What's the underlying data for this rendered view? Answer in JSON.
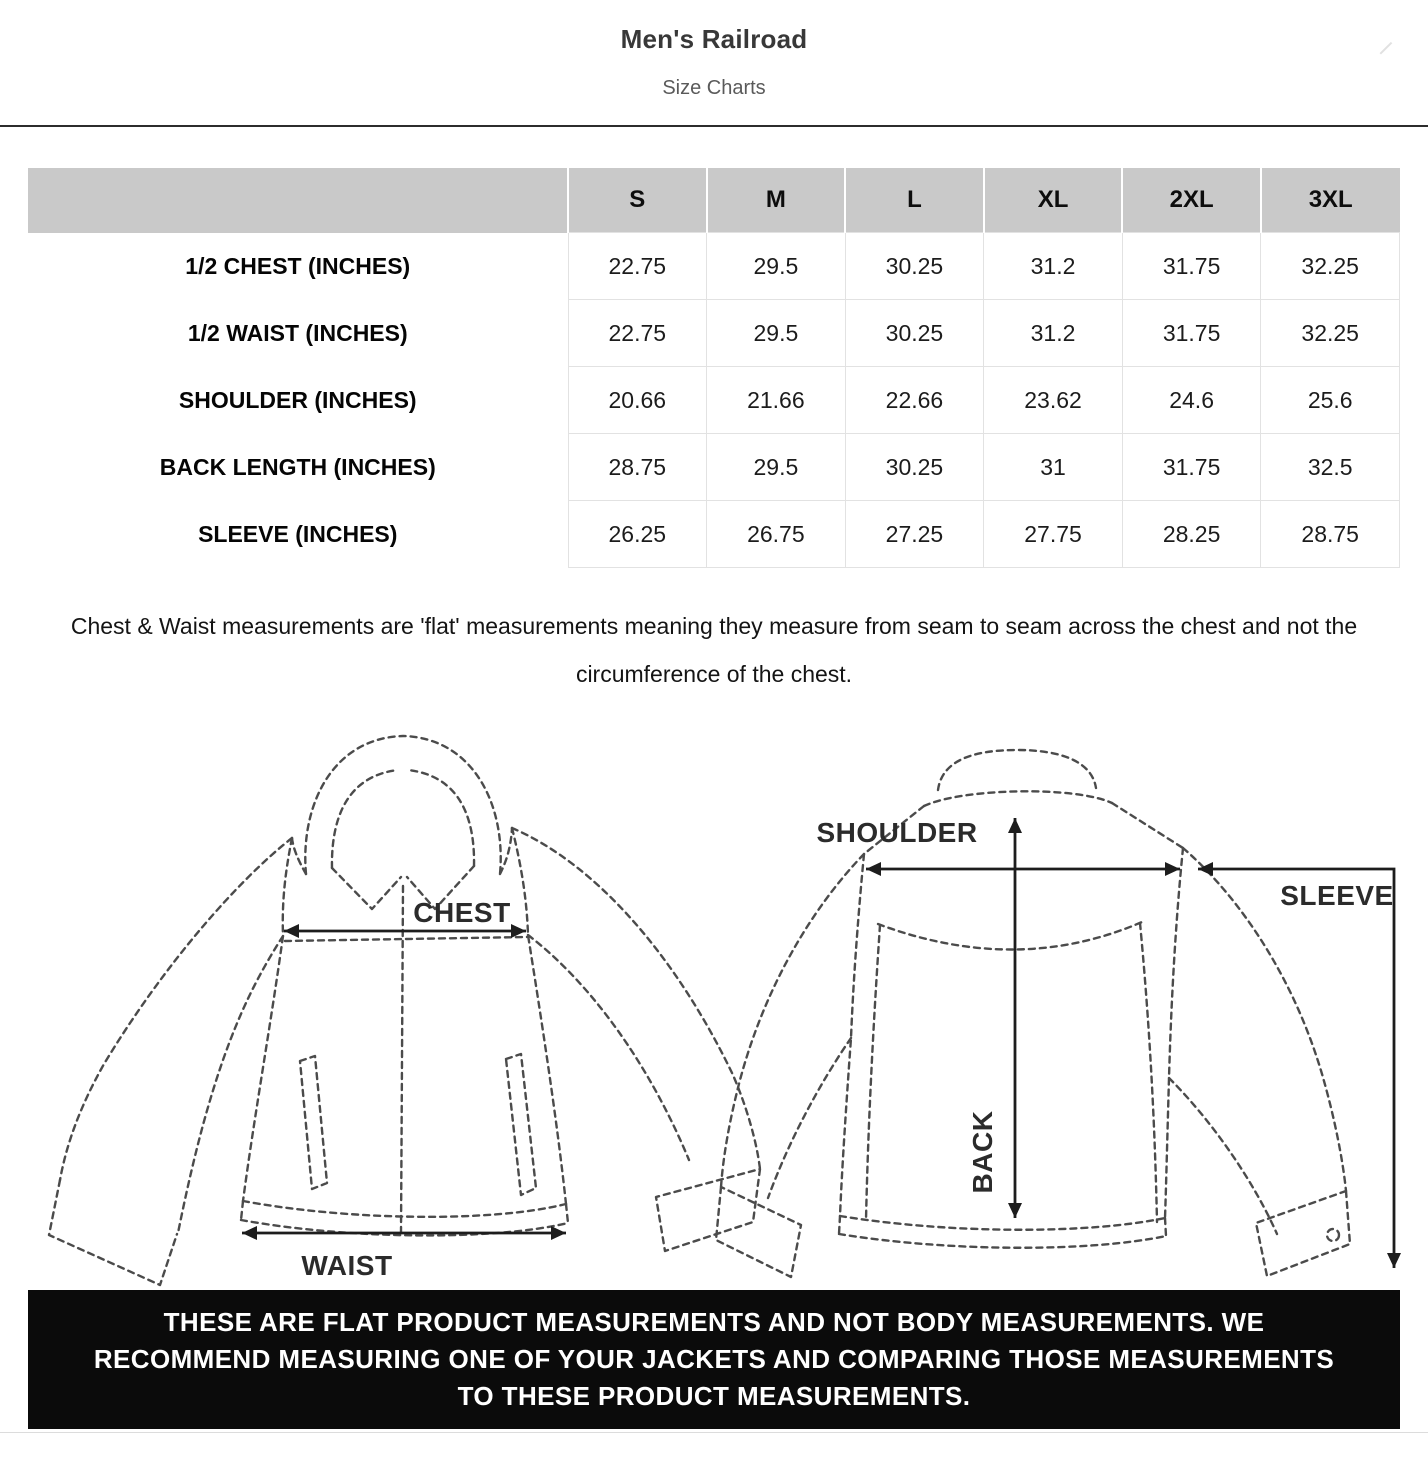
{
  "header": {
    "title": "Men's Railroad",
    "subtitle": "Size Charts"
  },
  "size_table": {
    "columns": [
      "S",
      "M",
      "L",
      "XL",
      "2XL",
      "3XL"
    ],
    "rows": [
      {
        "label": "1/2 CHEST (INCHES)",
        "values": [
          "22.75",
          "29.5",
          "30.25",
          "31.2",
          "31.75",
          "32.25"
        ]
      },
      {
        "label": "1/2 WAIST (INCHES)",
        "values": [
          "22.75",
          "29.5",
          "30.25",
          "31.2",
          "31.75",
          "32.25"
        ]
      },
      {
        "label": "SHOULDER (INCHES)",
        "values": [
          "20.66",
          "21.66",
          "22.66",
          "23.62",
          "24.6",
          "25.6"
        ]
      },
      {
        "label": "BACK LENGTH (INCHES)",
        "values": [
          "28.75",
          "29.5",
          "30.25",
          "31",
          "31.75",
          "32.5"
        ]
      },
      {
        "label": "SLEEVE (INCHES)",
        "values": [
          "26.25",
          "26.75",
          "27.25",
          "27.75",
          "28.25",
          "28.75"
        ]
      }
    ]
  },
  "note": "Chest & Waist measurements are 'flat' measurements meaning they measure from seam to seam across the chest and not the circumference of the chest.",
  "diagram_labels": {
    "chest": "CHEST",
    "waist": "WAIST",
    "shoulder": "SHOULDER",
    "sleeve": "SLEEVE",
    "back": "BACK"
  },
  "footer_banner": "THESE ARE FLAT PRODUCT MEASUREMENTS AND NOT BODY MEASUREMENTS. WE RECOMMEND MEASURING ONE OF YOUR JACKETS AND COMPARING THOSE MEASUREMENTS TO THESE PRODUCT MEASUREMENTS.",
  "colors": {
    "table_header_bg": "#c9c9c9",
    "banner_bg": "#0b0b0b",
    "banner_text": "#ffffff",
    "outline": "#4b4b4b",
    "measure_line": "#1d1d1d"
  }
}
